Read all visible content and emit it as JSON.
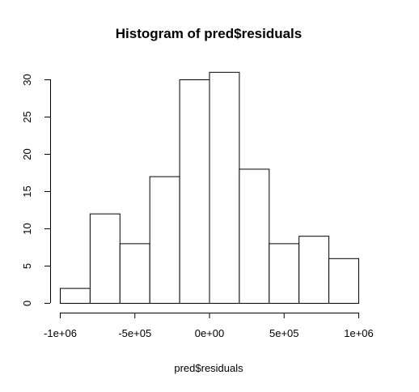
{
  "chart_data": {
    "type": "bar",
    "title": "Histogram of pred$residuals",
    "xlabel": "pred$residuals",
    "ylabel": "",
    "bin_edges": [
      -1000000,
      -800000,
      -600000,
      -400000,
      -200000,
      0,
      200000,
      400000,
      600000,
      800000,
      1000000
    ],
    "values": [
      2,
      12,
      8,
      17,
      30,
      31,
      18,
      8,
      9,
      6
    ],
    "xlim": [
      -1000000,
      1000000
    ],
    "ylim": [
      0,
      30
    ],
    "x_ticks": [
      -1000000,
      -500000,
      0,
      500000,
      1000000
    ],
    "x_tick_labels": [
      "-1e+06",
      "-5e+05",
      "0e+00",
      "5e+05",
      "1e+06"
    ],
    "y_ticks": [
      0,
      5,
      10,
      15,
      20,
      25,
      30
    ],
    "y_tick_labels": [
      "0",
      "5",
      "10",
      "15",
      "20",
      "25",
      "30"
    ],
    "grid": false,
    "bar_fill": "#ffffff",
    "bar_stroke": "#000000"
  }
}
